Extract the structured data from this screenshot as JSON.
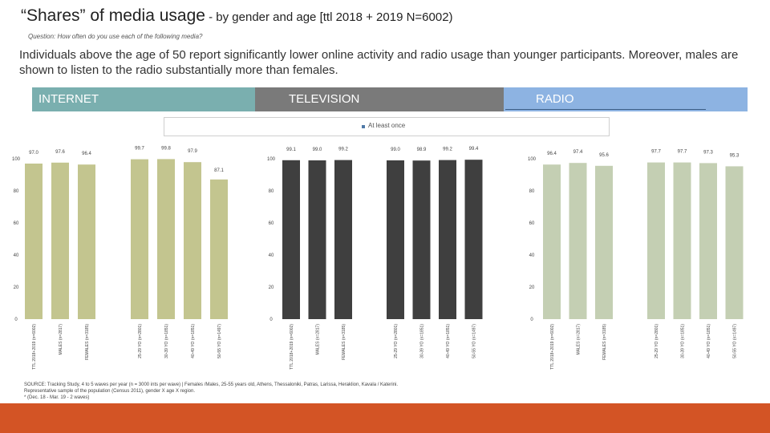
{
  "title": {
    "main": "“Shares” of media usage",
    "sub": " - by gender and age [ttl 2018 + 2019 N=6002)"
  },
  "question": "Question: How often do you use each of the following media?",
  "intro": "Individuals above the age of 50 report significantly lower online activity and radio usage than younger participants. Moreover, males are shown to listen to the radio substantially more than females.",
  "headers": {
    "internet": "INTERNET",
    "television": "TELEVISION",
    "radio": "RADIO"
  },
  "legend": {
    "label": "At least once"
  },
  "colors": {
    "internet": "#c3c58f",
    "television": "#3f3f3f",
    "radio": "#c4cfb3",
    "footer": "#d35425"
  },
  "source": [
    "SOURCE: Tracking Study, 4 to 5 waves per year (n = 3000 ints per wave) | Females /Males, 25-55 years old, Athens, Thessaloniki, Patras, Larissa, Heraklion, Kavala / Katerini.",
    "Representative sample of the population (Census 2011), gender X age X region.",
    "* (Dec. 18 - Mar. 19 - 2 waves)"
  ],
  "chart_data": {
    "type": "bar",
    "ylim": [
      0,
      100
    ],
    "yticks": [
      0,
      20,
      40,
      60,
      80,
      100
    ],
    "categories": [
      "TTL 2018+2019 (n=6002)",
      "MALES (n=2817)",
      "FEMALES (n=3185)",
      "25-29 YO (n=2801)",
      "30-39 YO (n=1851)",
      "40-49 YO (n=1851)",
      "50-55 YO (n=1497)"
    ],
    "groups": [
      {
        "name": "INTERNET",
        "slots": [
          0,
          1,
          2,
          4,
          5,
          6,
          7
        ],
        "values": [
          97.0,
          97.6,
          96.4,
          99.7,
          99.8,
          97.9,
          87.1
        ]
      },
      {
        "name": "TELEVISION",
        "slots": [
          0,
          1,
          2,
          4,
          5,
          6,
          7
        ],
        "values": [
          99.1,
          99.0,
          99.2,
          99.0,
          98.9,
          99.2,
          99.4
        ]
      },
      {
        "name": "RADIO",
        "slots": [
          0,
          1,
          2,
          4,
          5,
          6,
          7
        ],
        "values": [
          96.4,
          97.4,
          95.6,
          97.7,
          97.7,
          97.3,
          95.3
        ]
      }
    ]
  }
}
